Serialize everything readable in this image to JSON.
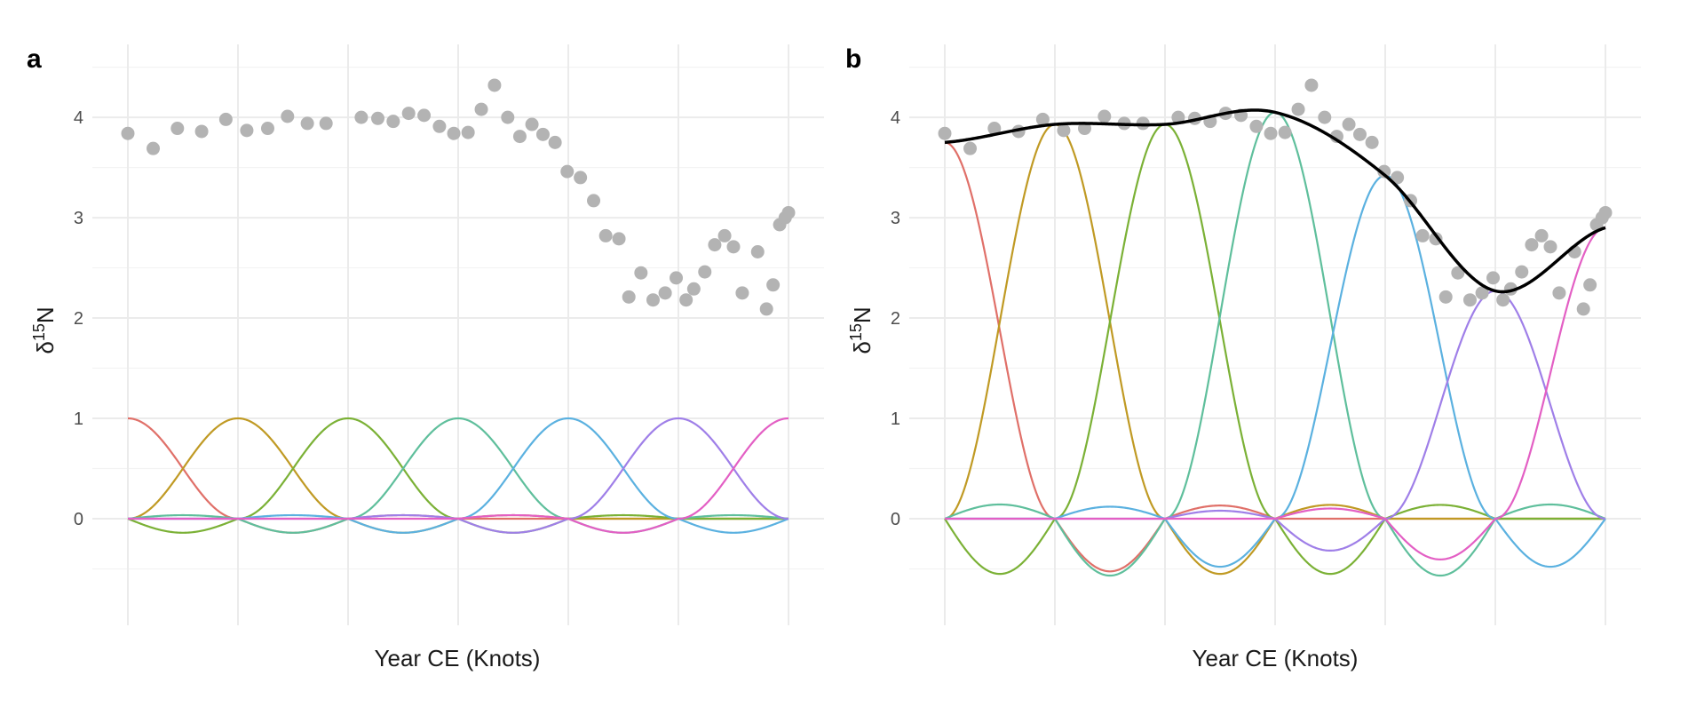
{
  "chart_data": [
    {
      "type": "scatter",
      "panel": "a",
      "xlabel": "Year CE (Knots)",
      "ylabel": "δ15N",
      "ylim": [
        -0.85,
        4.55
      ],
      "yticks": [
        0,
        1,
        2,
        3,
        4
      ],
      "knots": 7,
      "grid": true,
      "points": [
        [
          0.0,
          3.84
        ],
        [
          0.23,
          3.69
        ],
        [
          0.45,
          3.89
        ],
        [
          0.67,
          3.86
        ],
        [
          0.89,
          3.98
        ],
        [
          1.08,
          3.87
        ],
        [
          1.27,
          3.89
        ],
        [
          1.45,
          4.01
        ],
        [
          1.63,
          3.94
        ],
        [
          1.8,
          3.94
        ],
        [
          2.12,
          4.0
        ],
        [
          2.27,
          3.99
        ],
        [
          2.41,
          3.96
        ],
        [
          2.55,
          4.04
        ],
        [
          2.69,
          4.02
        ],
        [
          2.83,
          3.91
        ],
        [
          2.96,
          3.84
        ],
        [
          3.09,
          3.85
        ],
        [
          3.21,
          4.08
        ],
        [
          3.33,
          4.32
        ],
        [
          3.45,
          4.0
        ],
        [
          3.56,
          3.81
        ],
        [
          3.67,
          3.93
        ],
        [
          3.77,
          3.83
        ],
        [
          3.88,
          3.75
        ],
        [
          3.99,
          3.46
        ],
        [
          4.11,
          3.4
        ],
        [
          4.23,
          3.17
        ],
        [
          4.34,
          2.82
        ],
        [
          4.46,
          2.79
        ],
        [
          4.55,
          2.21
        ],
        [
          4.66,
          2.45
        ],
        [
          4.77,
          2.18
        ],
        [
          4.88,
          2.25
        ],
        [
          4.98,
          2.4
        ],
        [
          5.07,
          2.18
        ],
        [
          5.14,
          2.29
        ],
        [
          5.24,
          2.46
        ],
        [
          5.33,
          2.73
        ],
        [
          5.42,
          2.82
        ],
        [
          5.5,
          2.71
        ],
        [
          5.58,
          2.25
        ],
        [
          5.72,
          2.66
        ],
        [
          5.8,
          2.09
        ],
        [
          5.86,
          2.33
        ],
        [
          5.92,
          2.93
        ],
        [
          5.97,
          3.0
        ],
        [
          6.0,
          3.05
        ]
      ],
      "point_color": "#b3b3b3",
      "basis_colors": [
        "#e07069",
        "#c09a24",
        "#7bb136",
        "#5fbf9c",
        "#5bb1e0",
        "#9f7fe8",
        "#e35fc4"
      ],
      "basis_scale": [
        1,
        1,
        1,
        1,
        1,
        1,
        1
      ],
      "fit_line": false
    },
    {
      "type": "line",
      "panel": "b",
      "xlabel": "Year CE (Knots)",
      "ylabel": "δ15N",
      "ylim": [
        -0.85,
        4.55
      ],
      "yticks": [
        0,
        1,
        2,
        3,
        4
      ],
      "knots": 7,
      "grid": true,
      "points": [
        [
          0.0,
          3.84
        ],
        [
          0.23,
          3.69
        ],
        [
          0.45,
          3.89
        ],
        [
          0.67,
          3.86
        ],
        [
          0.89,
          3.98
        ],
        [
          1.08,
          3.87
        ],
        [
          1.27,
          3.89
        ],
        [
          1.45,
          4.01
        ],
        [
          1.63,
          3.94
        ],
        [
          1.8,
          3.94
        ],
        [
          2.12,
          4.0
        ],
        [
          2.27,
          3.99
        ],
        [
          2.41,
          3.96
        ],
        [
          2.55,
          4.04
        ],
        [
          2.69,
          4.02
        ],
        [
          2.83,
          3.91
        ],
        [
          2.96,
          3.84
        ],
        [
          3.09,
          3.85
        ],
        [
          3.21,
          4.08
        ],
        [
          3.33,
          4.32
        ],
        [
          3.45,
          4.0
        ],
        [
          3.56,
          3.81
        ],
        [
          3.67,
          3.93
        ],
        [
          3.77,
          3.83
        ],
        [
          3.88,
          3.75
        ],
        [
          3.99,
          3.46
        ],
        [
          4.11,
          3.4
        ],
        [
          4.23,
          3.17
        ],
        [
          4.34,
          2.82
        ],
        [
          4.46,
          2.79
        ],
        [
          4.55,
          2.21
        ],
        [
          4.66,
          2.45
        ],
        [
          4.77,
          2.18
        ],
        [
          4.88,
          2.25
        ],
        [
          4.98,
          2.4
        ],
        [
          5.07,
          2.18
        ],
        [
          5.14,
          2.29
        ],
        [
          5.24,
          2.46
        ],
        [
          5.33,
          2.73
        ],
        [
          5.42,
          2.82
        ],
        [
          5.5,
          2.71
        ],
        [
          5.58,
          2.25
        ],
        [
          5.72,
          2.66
        ],
        [
          5.8,
          2.09
        ],
        [
          5.86,
          2.33
        ],
        [
          5.92,
          2.93
        ],
        [
          5.97,
          3.0
        ],
        [
          6.0,
          3.05
        ]
      ],
      "point_color": "#b3b3b3",
      "basis_colors": [
        "#e07069",
        "#c09a24",
        "#7bb136",
        "#5fbf9c",
        "#5bb1e0",
        "#9f7fe8",
        "#e35fc4"
      ],
      "basis_scale": [
        3.75,
        3.93,
        3.93,
        4.05,
        3.42,
        2.27,
        2.9
      ],
      "fit_line": true,
      "fit_color": "#000000"
    }
  ]
}
